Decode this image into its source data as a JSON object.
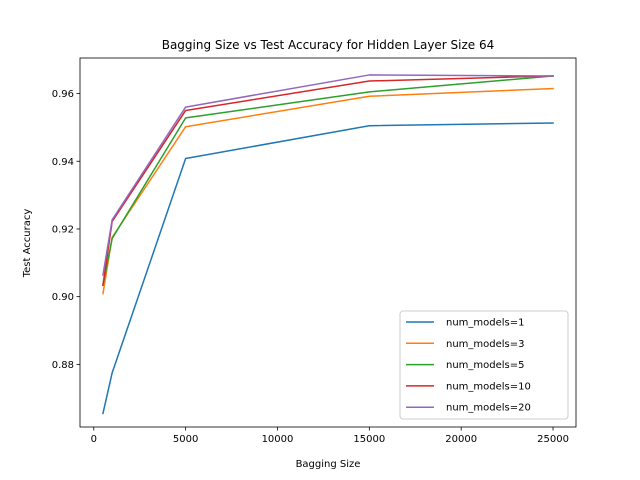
{
  "chart_data": {
    "type": "line",
    "title": "Bagging Size vs Test Accuracy for Hidden Layer Size 64",
    "xlabel": "Bagging Size",
    "ylabel": "Test Accuracy",
    "xlim": [
      -750,
      26250
    ],
    "ylim": [
      0.8615,
      0.9705
    ],
    "xticks": [
      0,
      5000,
      10000,
      15000,
      20000,
      25000
    ],
    "yticks": [
      0.88,
      0.9,
      0.92,
      0.94,
      0.96
    ],
    "ytick_labels": [
      "0.88",
      "0.90",
      "0.92",
      "0.94",
      "0.96"
    ],
    "grid": false,
    "legend_position": "lower right",
    "series": [
      {
        "name": "num_models=1",
        "color": "#1f77b4",
        "x": [
          500,
          1000,
          5000,
          15000,
          25000
        ],
        "y": [
          0.8655,
          0.8775,
          0.9408,
          0.9505,
          0.9513
        ]
      },
      {
        "name": "num_models=3",
        "color": "#ff7f0e",
        "x": [
          500,
          1000,
          5000,
          15000,
          25000
        ],
        "y": [
          0.9009,
          0.9175,
          0.9502,
          0.9592,
          0.9615
        ]
      },
      {
        "name": "num_models=5",
        "color": "#2ca02c",
        "x": [
          500,
          1000,
          5000,
          15000,
          25000
        ],
        "y": [
          0.9034,
          0.9172,
          0.9528,
          0.9605,
          0.9652
        ]
      },
      {
        "name": "num_models=10",
        "color": "#d62728",
        "x": [
          500,
          1000,
          5000,
          15000,
          25000
        ],
        "y": [
          0.9034,
          0.9222,
          0.955,
          0.9637,
          0.9652
        ]
      },
      {
        "name": "num_models=20",
        "color": "#9467bd",
        "x": [
          500,
          1000,
          5000,
          15000,
          25000
        ],
        "y": [
          0.9064,
          0.9227,
          0.956,
          0.9655,
          0.9652
        ]
      }
    ]
  }
}
